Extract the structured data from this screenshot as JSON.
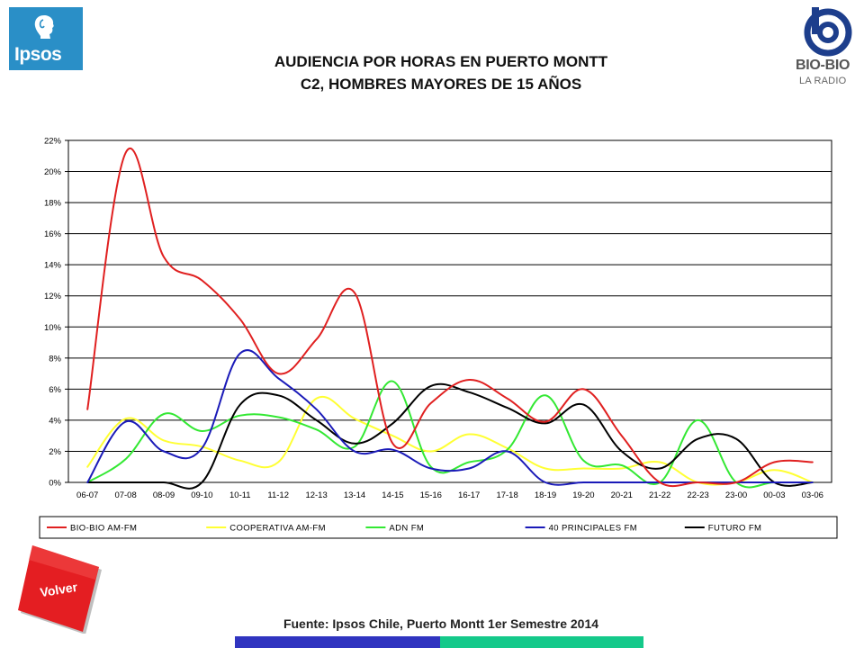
{
  "header": {
    "title_line1": "AUDIENCIA POR HORAS EN PUERTO MONTT",
    "title_line2": "C2, HOMBRES MAYORES DE 15 AÑOS",
    "left_logo_text": "Ipsos",
    "right_logo_text": "BIO-BIO",
    "right_logo_subtext": "LA RADIO"
  },
  "footer": {
    "source": "Fuente: Ipsos Chile, Puerto Montt 1er Semestre 2014",
    "back_button_label": "Volver"
  },
  "colors": {
    "ipsos_blue": "#2a8fc7",
    "back_button_red": "#e41e22",
    "bar_blue": "#3034c0",
    "bar_teal": "#14c98a"
  },
  "chart_data": {
    "type": "line",
    "title": "",
    "xlabel": "",
    "ylabel": "",
    "ylim": [
      0,
      22
    ],
    "ytick_step": 2,
    "ytick_suffix": "%",
    "grid": true,
    "legend_position": "bottom",
    "categories": [
      "06-07",
      "07-08",
      "08-09",
      "09-10",
      "10-11",
      "11-12",
      "12-13",
      "13-14",
      "14-15",
      "15-16",
      "16-17",
      "17-18",
      "18-19",
      "19-20",
      "20-21",
      "21-22",
      "22-23",
      "23-00",
      "00-03",
      "03-06"
    ],
    "series": [
      {
        "name": "BIO-BIO AM-FM",
        "color": "#e02020",
        "values": [
          4.7,
          21.2,
          14.5,
          13.0,
          10.5,
          7.0,
          9.2,
          12.2,
          2.5,
          5.1,
          6.6,
          5.4,
          3.9,
          6.0,
          3.0,
          0.0,
          0.0,
          0.0,
          1.3,
          1.3
        ]
      },
      {
        "name": "COOPERATIVA AM-FM",
        "color": "#ffff33",
        "values": [
          1.0,
          4.1,
          2.7,
          2.3,
          1.4,
          1.3,
          5.4,
          4.1,
          3.0,
          2.0,
          3.1,
          2.2,
          0.9,
          0.9,
          0.9,
          1.3,
          0.0,
          0.0,
          0.8,
          0.0
        ]
      },
      {
        "name": "ADN FM",
        "color": "#33e833",
        "values": [
          0.0,
          1.5,
          4.4,
          3.3,
          4.3,
          4.2,
          3.4,
          2.3,
          6.5,
          1.0,
          1.3,
          2.1,
          5.6,
          1.4,
          1.1,
          0.0,
          4.0,
          0.0,
          0.0,
          0.0
        ]
      },
      {
        "name": "40 PRINCIPALES FM",
        "color": "#1a1ab8",
        "values": [
          0.0,
          3.9,
          2.0,
          2.2,
          8.3,
          6.7,
          4.7,
          2.0,
          2.1,
          0.9,
          0.9,
          2.0,
          0.0,
          0.0,
          0.0,
          0.0,
          0.0,
          0.0,
          0.0,
          0.0
        ]
      },
      {
        "name": "FUTURO FM",
        "color": "#000000",
        "values": [
          0.0,
          0.0,
          0.0,
          0.0,
          5.0,
          5.6,
          4.0,
          2.5,
          3.8,
          6.2,
          5.8,
          4.8,
          3.8,
          5.0,
          2.0,
          0.9,
          2.8,
          2.8,
          0.0,
          0.0
        ]
      }
    ]
  }
}
